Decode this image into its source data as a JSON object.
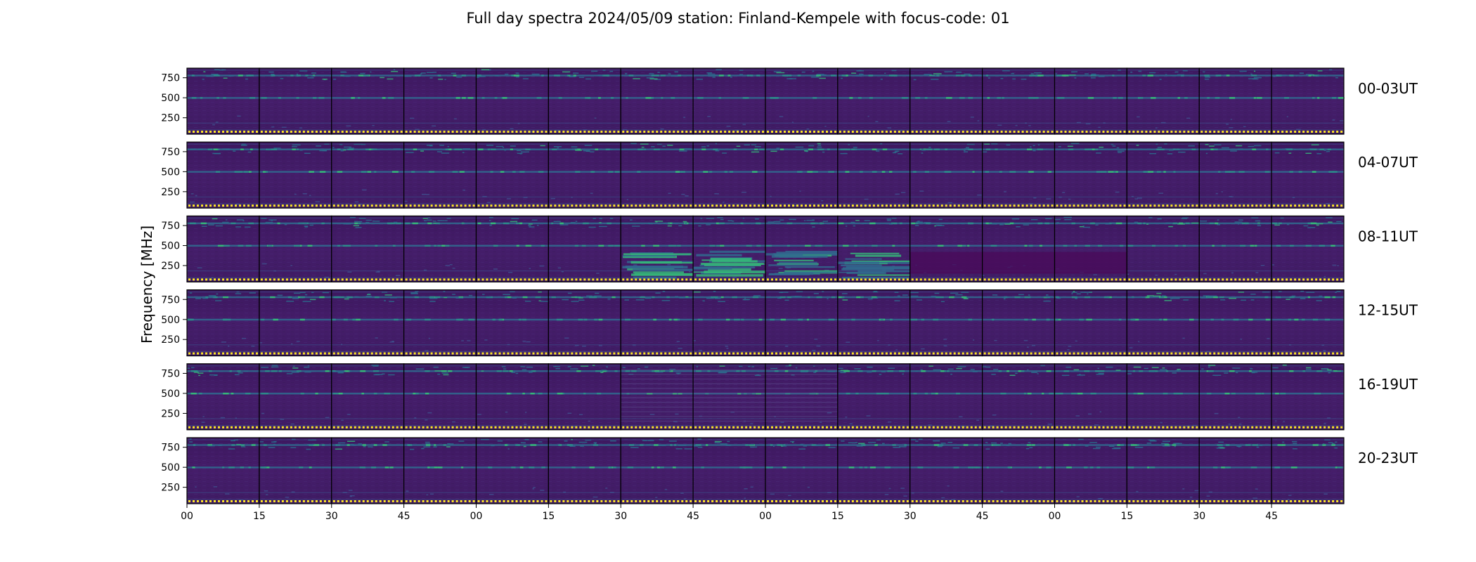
{
  "figure": {
    "title": "Full day spectra 2024/05/09 station: Finland-Kempele with focus-code: 01",
    "ylabel": "Frequency [MHz]"
  },
  "colors": {
    "background": "#440154",
    "low": "#3b0f5a",
    "mid": "#31688e",
    "high": "#35b779",
    "peak": "#fde725",
    "marker": "#fde725",
    "frame": "#000000"
  },
  "chart_data": {
    "type": "heatmap",
    "title": "Full day spectra 2024/05/09 station: Finland-Kempele with focus-code: 01",
    "ylabel": "Frequency [MHz]",
    "xlabel": "",
    "rows": [
      "00-03UT",
      "04-07UT",
      "08-11UT",
      "12-15UT",
      "16-19UT",
      "20-23UT"
    ],
    "y_ticks": [
      250,
      500,
      750
    ],
    "y_tick_labels": [
      "250",
      "500",
      "750"
    ],
    "ylim": [
      45,
      870
    ],
    "x_tick_labels": [
      "00",
      "15",
      "30",
      "45",
      "00",
      "15",
      "30",
      "45",
      "00",
      "15",
      "30",
      "45",
      "00",
      "15",
      "30",
      "45"
    ],
    "panels_per_row": 16,
    "panel_minutes": 15,
    "colormap": "viridis",
    "emission_lines_mhz": [
      95,
      180,
      500,
      780,
      840
    ],
    "bursts": [
      {
        "row": "08-11UT",
        "panels": [
          6,
          7,
          8,
          9
        ],
        "freq_range": [
          100,
          450
        ],
        "note": "strong broadband burst"
      },
      {
        "row": "08-11UT",
        "panels": [
          10,
          11,
          12
        ],
        "freq_range": [
          150,
          420
        ],
        "note": "depressed background"
      },
      {
        "row": "16-19UT",
        "panels": [
          6,
          7,
          8
        ],
        "freq_range": [
          100,
          800
        ],
        "note": "interference pattern"
      }
    ]
  }
}
